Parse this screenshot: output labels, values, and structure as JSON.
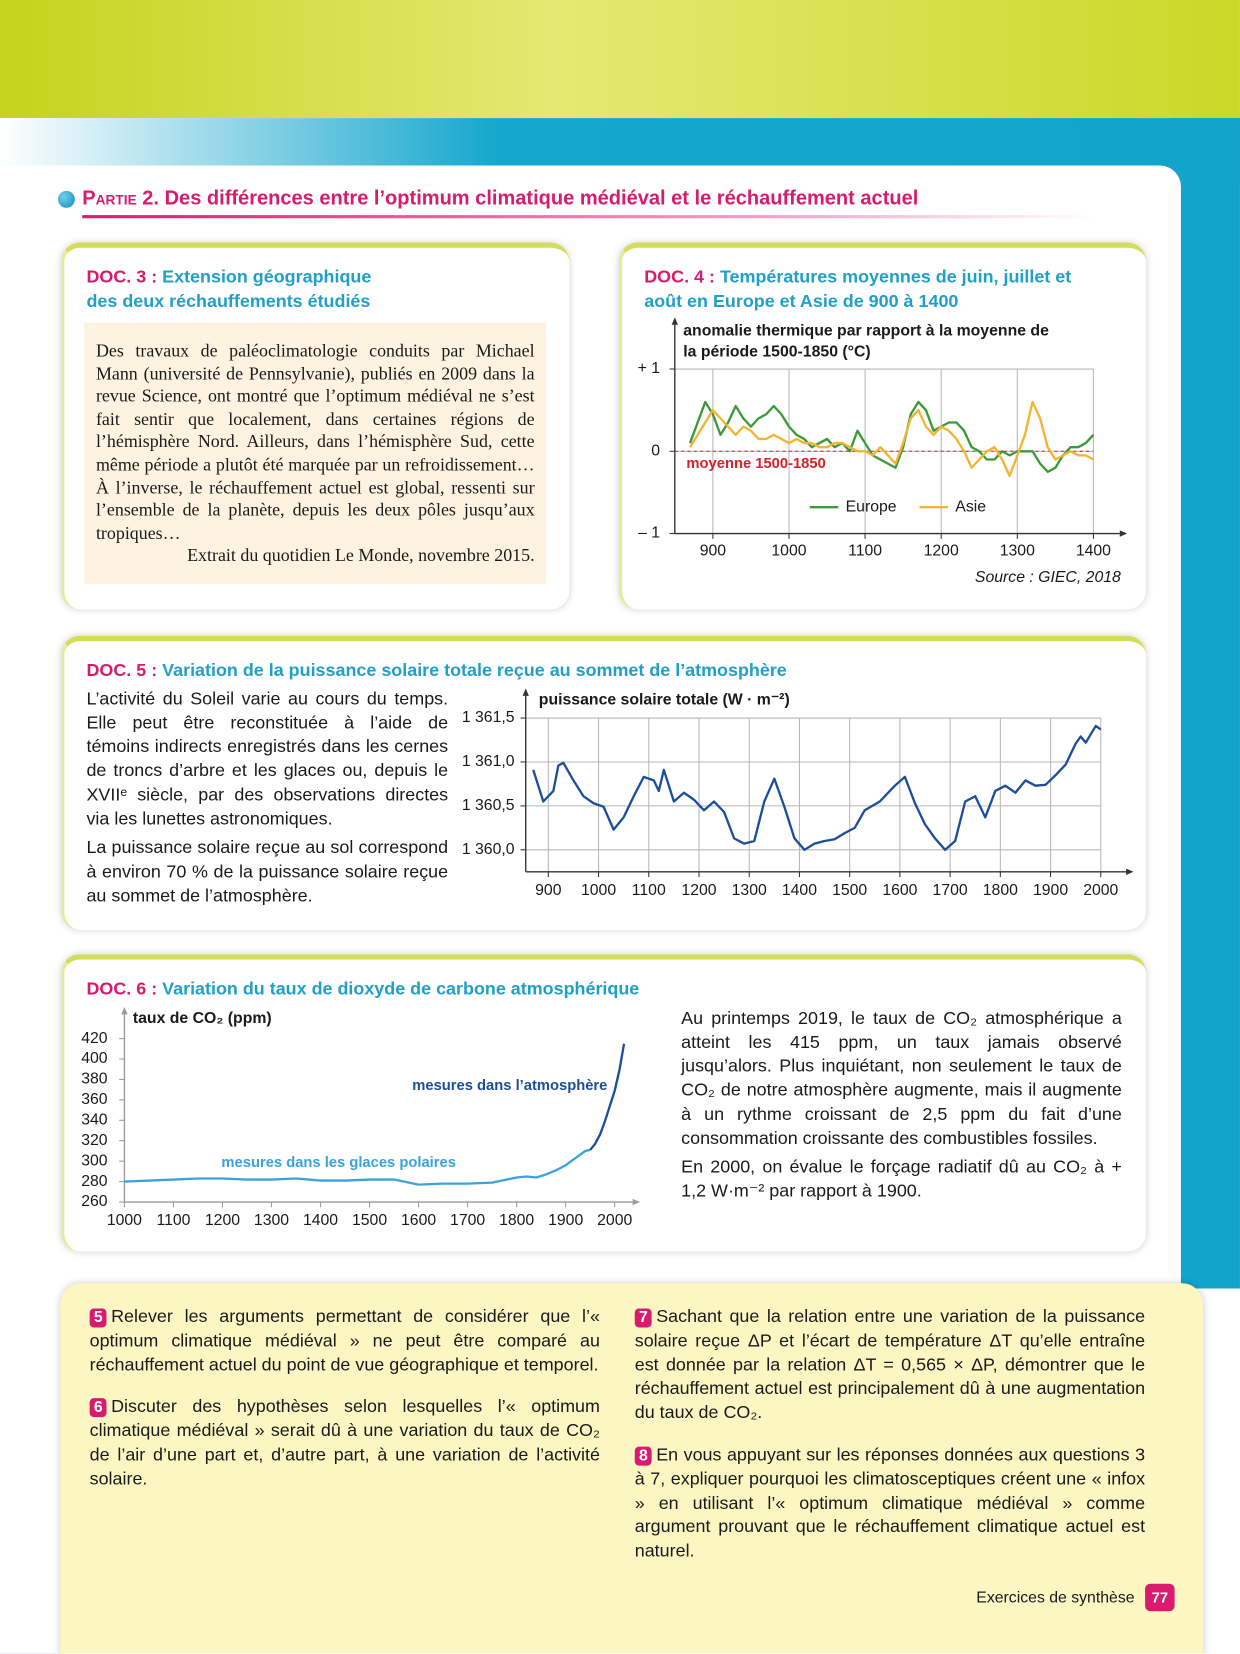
{
  "header": {
    "part_label": "Partie 2.",
    "part_title": "Des différences entre l’optimum climatique médiéval et le réchauffement actuel"
  },
  "docs": [
    {
      "label": "DOC. 3 :",
      "title": "Extension géographique des deux réchauffements étudiés",
      "text": "Des travaux de paléoclimatologie conduits par Michael Mann (université de Pennsylvanie), publiés en 2009 dans la revue Science, ont montré que l’optimum médiéval ne s’est fait sentir que localement, dans certaines régions de l’hémisphère Nord. Ailleurs, dans l’hémisphère Sud, cette même période a plutôt été marquée par un refroidissement… À l’inverse, le réchauffement actuel est global, ressenti sur l’ensemble de la planète, depuis les deux pôles jusqu’aux tropiques…",
      "source": "Extrait du quotidien Le Monde, novembre 2015."
    },
    {
      "label": "DOC. 4 :",
      "title": "Températures moyennes de juin, juillet et août en Europe et Asie de 900 à 1400"
    },
    {
      "label": "DOC. 5 :",
      "title": "Variation de la puissance solaire totale reçue au sommet de l’atmosphère",
      "paragraphs": [
        "L’activité du Soleil varie au cours du temps. Elle peut être reconstituée à l’aide de témoins indirects enregistrés dans les cernes de troncs d’arbre et les glaces ou, depuis le XVIIᵉ siècle, par des observations directes via les lunettes astronomiques.",
        "La puissance solaire reçue au sol correspond à environ 70 % de la puissance solaire reçue au sommet de l’atmosphère."
      ]
    },
    {
      "label": "DOC. 6 :",
      "title": "Variation du taux de dioxyde de carbone atmosphérique",
      "paragraphs": [
        "Au printemps 2019, le taux de CO₂ atmosphérique a atteint les 415 ppm, un taux jamais observé jusqu’alors. Plus inquiétant, non seulement le taux de CO₂ de notre atmosphère augmente, mais il augmente à un rythme croissant de 2,5 ppm du fait d’une consommation croissante des combustibles fossiles.",
        "En 2000, on évalue le forçage radiatif dû au CO₂ à + 1,2 W·m⁻² par rapport à 1900."
      ]
    }
  ],
  "chart_data": [
    {
      "type": "line",
      "y_label": "anomalie thermique par rapport à la moyenne de la période 1500-1850 (°C)",
      "source": "Source : GIEC, 2018",
      "annotations": [
        "moyenne 1500-1850"
      ],
      "x": [
        870,
        880,
        890,
        900,
        910,
        920,
        930,
        940,
        950,
        960,
        970,
        980,
        990,
        1000,
        1010,
        1020,
        1030,
        1040,
        1050,
        1060,
        1070,
        1080,
        1090,
        1100,
        1110,
        1120,
        1130,
        1140,
        1150,
        1160,
        1170,
        1180,
        1190,
        1200,
        1210,
        1220,
        1230,
        1240,
        1250,
        1260,
        1270,
        1280,
        1290,
        1300,
        1310,
        1320,
        1330,
        1340,
        1350,
        1360,
        1370,
        1380,
        1390,
        1400
      ],
      "series": [
        {
          "name": "Europe",
          "color": "#3a9a3a",
          "values": [
            0.1,
            0.35,
            0.6,
            0.45,
            0.2,
            0.35,
            0.55,
            0.4,
            0.3,
            0.4,
            0.45,
            0.55,
            0.45,
            0.3,
            0.2,
            0.15,
            0.05,
            0.1,
            0.15,
            0.05,
            0.1,
            0,
            0.25,
            0.1,
            -0.05,
            -0.1,
            -0.15,
            -0.2,
            0.05,
            0.45,
            0.6,
            0.5,
            0.25,
            0.3,
            0.35,
            0.35,
            0.25,
            0.05,
            0,
            -0.1,
            -0.1,
            0,
            -0.05,
            0,
            0,
            0,
            -0.15,
            -0.25,
            -0.2,
            -0.05,
            0.05,
            0.05,
            0.1,
            0.2
          ]
        },
        {
          "name": "Asie",
          "color": "#f2b431",
          "values": [
            0.05,
            0.2,
            0.35,
            0.5,
            0.4,
            0.3,
            0.2,
            0.3,
            0.25,
            0.15,
            0.15,
            0.2,
            0.15,
            0.1,
            0.15,
            0.1,
            0.1,
            0.05,
            0.05,
            0.1,
            0.1,
            0.05,
            0,
            0,
            -0.05,
            0.05,
            -0.05,
            -0.15,
            0.1,
            0.4,
            0.5,
            0.3,
            0.2,
            0.3,
            0.25,
            0.15,
            0,
            -0.2,
            -0.1,
            0,
            0.05,
            -0.1,
            -0.3,
            -0.05,
            0.2,
            0.6,
            0.4,
            0.05,
            -0.1,
            -0.05,
            0,
            -0.05,
            -0.05,
            -0.1
          ]
        }
      ],
      "xlim": [
        850,
        1400
      ],
      "xticks": [
        900,
        1000,
        1100,
        1200,
        1300,
        1400
      ],
      "ylim": [
        -1,
        1
      ],
      "yticks": [
        {
          "value": -1,
          "label": "– 1"
        },
        0,
        {
          "value": 1,
          "label": "+ 1"
        }
      ],
      "grid": true,
      "legend": "lower right"
    },
    {
      "type": "line",
      "y_label": "puissance solaire totale (W · m⁻²)",
      "x": [
        870,
        890,
        910,
        920,
        930,
        950,
        970,
        990,
        1010,
        1030,
        1050,
        1070,
        1090,
        1110,
        1120,
        1130,
        1150,
        1170,
        1190,
        1210,
        1230,
        1250,
        1270,
        1290,
        1310,
        1330,
        1350,
        1370,
        1390,
        1410,
        1430,
        1450,
        1470,
        1490,
        1510,
        1530,
        1560,
        1590,
        1610,
        1630,
        1650,
        1670,
        1690,
        1710,
        1730,
        1750,
        1770,
        1790,
        1810,
        1830,
        1850,
        1870,
        1890,
        1910,
        1930,
        1950,
        1960,
        1970,
        1990,
        2000
      ],
      "series": [
        {
          "name": "puissance solaire totale",
          "color": "#1d4e9a",
          "values": [
            1360.91,
            1360.55,
            1360.67,
            1360.96,
            1360.99,
            1360.79,
            1360.61,
            1360.53,
            1360.49,
            1360.23,
            1360.37,
            1360.61,
            1360.83,
            1360.79,
            1360.67,
            1360.91,
            1360.55,
            1360.65,
            1360.57,
            1360.45,
            1360.55,
            1360.43,
            1360.13,
            1360.07,
            1360.1,
            1360.55,
            1360.81,
            1360.49,
            1360.13,
            1360,
            1360.07,
            1360.1,
            1360.12,
            1360.19,
            1360.25,
            1360.45,
            1360.55,
            1360.73,
            1360.83,
            1360.53,
            1360.29,
            1360.13,
            1360,
            1360.1,
            1360.55,
            1360.61,
            1360.37,
            1360.67,
            1360.73,
            1360.65,
            1360.79,
            1360.73,
            1360.74,
            1360.85,
            1360.97,
            1361.21,
            1361.29,
            1361.22,
            1361.41,
            1361.37
          ]
        }
      ],
      "xlim": [
        855,
        2000
      ],
      "xticks": [
        900,
        1000,
        1100,
        1200,
        1300,
        1400,
        1500,
        1600,
        1700,
        1800,
        1900,
        2000
      ],
      "ylim": [
        1359.75,
        1361.5
      ],
      "yticks": [
        {
          "value": 1360,
          "label": "1 360,0"
        },
        {
          "value": 1360.5,
          "label": "1 360,5"
        },
        {
          "value": 1361,
          "label": "1 361,0"
        },
        {
          "value": 1361.5,
          "label": "1 361,5"
        }
      ],
      "grid": true
    },
    {
      "type": "line",
      "y_label": "taux de CO₂ (ppm)",
      "x": [
        1000,
        1050,
        1100,
        1150,
        1200,
        1250,
        1300,
        1350,
        1400,
        1450,
        1500,
        1550,
        1600,
        1650,
        1700,
        1750,
        1800,
        1820,
        1840,
        1860,
        1880,
        1900,
        1920,
        1940,
        1950,
        1960,
        1970,
        1980,
        1990,
        2000,
        2010,
        2019
      ],
      "series": [
        {
          "name": "mesures dans les glaces polaires",
          "color": "#3aa3db",
          "values": [
            280,
            281,
            282,
            283,
            283,
            282,
            282,
            283,
            281,
            281,
            282,
            282,
            277,
            278,
            278,
            279,
            284,
            285,
            284,
            287,
            291,
            296,
            303,
            310,
            311,
            null,
            null,
            null,
            null,
            null,
            null,
            null
          ]
        },
        {
          "name": "mesures dans l’atmosphère",
          "color": "#1d4e9a",
          "values": [
            null,
            null,
            null,
            null,
            null,
            null,
            null,
            null,
            null,
            null,
            null,
            null,
            null,
            null,
            null,
            null,
            null,
            null,
            null,
            null,
            null,
            null,
            null,
            null,
            311,
            317,
            326,
            339,
            354,
            369,
            390,
            415
          ]
        }
      ],
      "xlim": [
        1000,
        2020
      ],
      "xticks": [
        1000,
        1100,
        1200,
        1300,
        1400,
        1500,
        1600,
        1700,
        1800,
        1900,
        2000
      ],
      "ylim": [
        260,
        420
      ],
      "yticks": [
        260,
        280,
        300,
        320,
        340,
        360,
        380,
        400,
        420
      ],
      "grid": false
    }
  ],
  "questions": [
    {
      "number": 5,
      "text": "Relever les arguments permettant de considérer que l’« optimum climatique médiéval » ne peut être comparé au réchauffement actuel du point de vue géographique et temporel."
    },
    {
      "number": 6,
      "text": "Discuter des hypothèses selon lesquelles l’« optimum climatique médiéval » serait dû à une variation du taux de CO₂ de l’air d’une part et, d’autre part, à une variation de l’activité solaire."
    },
    {
      "number": 7,
      "text": "Sachant que la relation entre une variation de la puissance solaire reçue ΔP et l’écart de température ΔT qu’elle entraîne est donnée par la relation ΔT = 0,565 × ΔP, démontrer que le réchauffement actuel est principalement dû à une augmentation du taux de CO₂."
    },
    {
      "number": 8,
      "text": "En vous appuyant sur les réponses données aux questions 3 à 7, expliquer pourquoi les climatosceptiques créent une « infox » en utilisant l’« optimum climatique médiéval » comme argument prouvant que le réchauffement climatique actuel est naturel."
    }
  ],
  "footer": {
    "section": "Exercices de synthèse",
    "page": 77
  }
}
